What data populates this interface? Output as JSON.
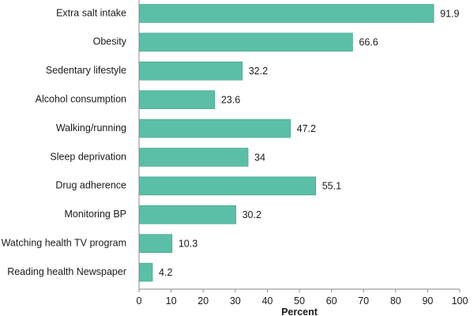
{
  "chart_data": {
    "type": "bar",
    "orientation": "horizontal",
    "categories": [
      "Extra salt intake",
      "Obesity",
      "Sedentary lifestyle",
      "Alcohol consumption",
      "Walking/running",
      "Sleep deprivation",
      "Drug adherence",
      "Monitoring BP",
      "Watching health TV program",
      "Reading health Newspaper"
    ],
    "values": [
      91.9,
      66.6,
      32.2,
      23.6,
      47.2,
      34,
      55.1,
      30.2,
      10.3,
      4.2
    ],
    "value_labels": [
      "91.9",
      "66.6",
      "32.2",
      "23.6",
      "47.2",
      "34",
      "55.1",
      "30.2",
      "10.3",
      "4.2"
    ],
    "title": "",
    "xlabel": "Percent",
    "ylabel": "",
    "xlim": [
      0,
      100
    ],
    "x_ticks": [
      0,
      10,
      20,
      30,
      40,
      50,
      60,
      70,
      80,
      90,
      100
    ],
    "grid": false,
    "legend": "none",
    "bar_color": "#5bbfa8",
    "bar_edge_color": "#3e9c87"
  }
}
